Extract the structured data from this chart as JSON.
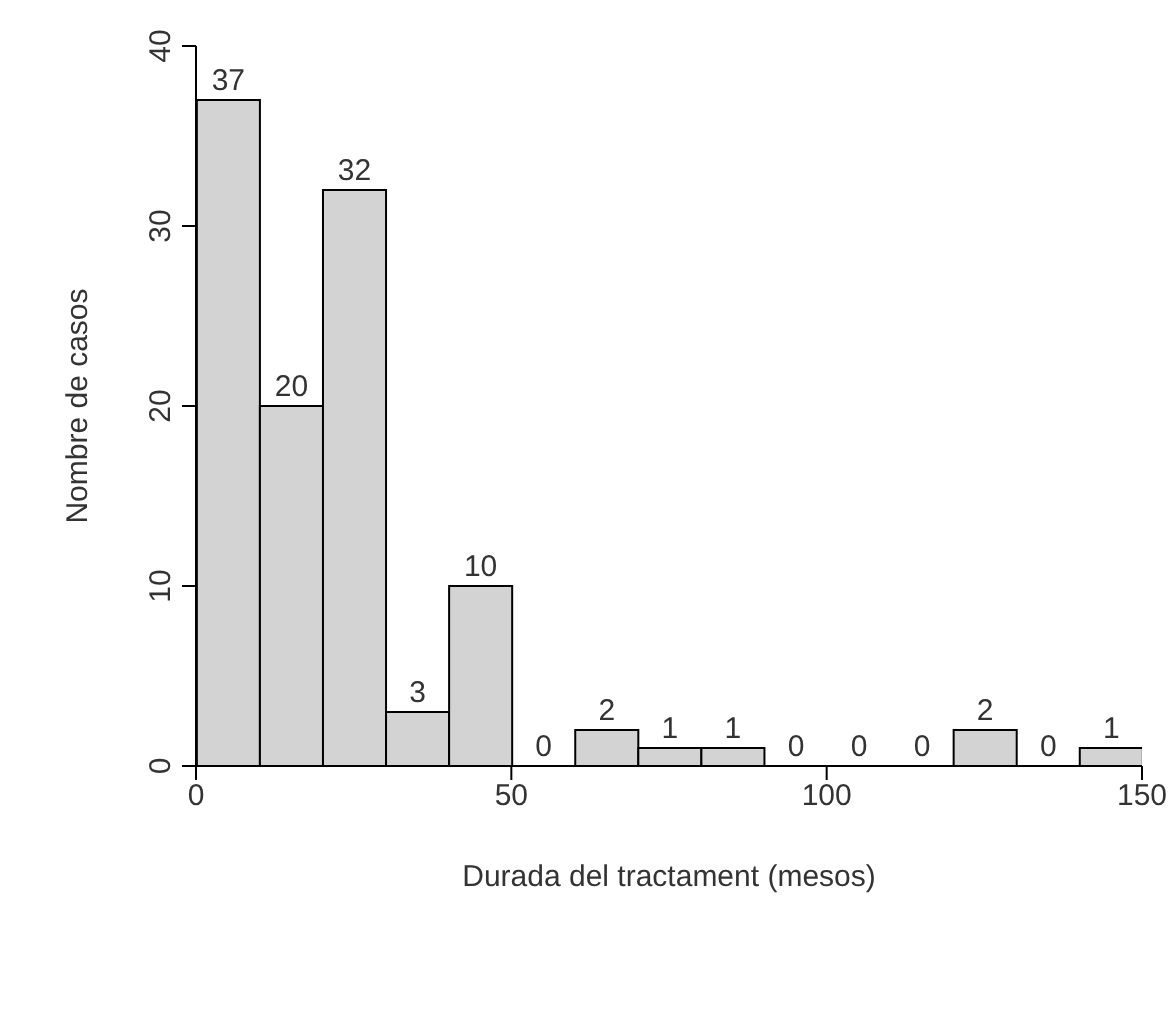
{
  "chart_data": {
    "type": "histogram",
    "xlabel": "Durada del tractament (mesos)",
    "ylabel": "Nombre de casos",
    "bins": [
      0,
      10,
      20,
      30,
      40,
      50,
      60,
      70,
      80,
      90,
      100,
      110,
      120,
      130,
      140,
      150
    ],
    "values": [
      37,
      20,
      32,
      3,
      10,
      0,
      2,
      1,
      1,
      0,
      0,
      0,
      2,
      0,
      1
    ],
    "color": "#d3d3d3",
    "xlim": [
      0,
      150
    ],
    "xticks": [
      0,
      50,
      100,
      150
    ],
    "ylim": [
      0,
      40
    ],
    "yticks": [
      0,
      10,
      20,
      30,
      40
    ],
    "data_labels": true,
    "grid": false
  }
}
